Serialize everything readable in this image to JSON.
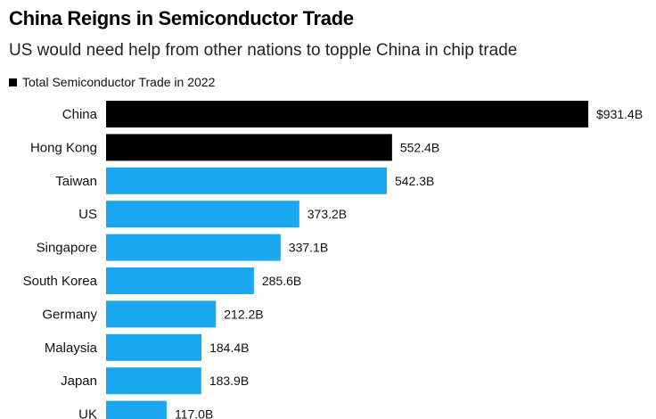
{
  "header": {
    "title": "China Reigns in Semiconductor Trade",
    "subtitle": "US would need help from other nations to topple China in chip trade"
  },
  "legend": {
    "label": "Total Semiconductor Trade in 2022",
    "color": "#000000"
  },
  "colors": {
    "highlight": "#000000",
    "default": "#1aa7f0"
  },
  "chart_data": {
    "type": "bar",
    "orientation": "horizontal",
    "title": "China Reigns in Semiconductor Trade",
    "subtitle": "US would need help from other nations to topple China in chip trade",
    "legend": [
      "Total Semiconductor Trade in 2022"
    ],
    "legend_position": "top-left",
    "unit": "billion USD",
    "categories": [
      "China",
      "Hong Kong",
      "Taiwan",
      "US",
      "Singapore",
      "South Korea",
      "Germany",
      "Malaysia",
      "Japan",
      "UK"
    ],
    "values": [
      931.4,
      552.4,
      542.3,
      373.2,
      337.1,
      285.6,
      212.2,
      184.4,
      183.9,
      117.0
    ],
    "value_labels": [
      "$931.4B",
      "552.4B",
      "542.3B",
      "373.2B",
      "337.1B",
      "285.6B",
      "212.2B",
      "184.4B",
      "183.9B",
      "117.0B"
    ],
    "highlighted": [
      "China",
      "Hong Kong"
    ],
    "xlim": [
      0,
      931.4
    ],
    "grid": false
  }
}
